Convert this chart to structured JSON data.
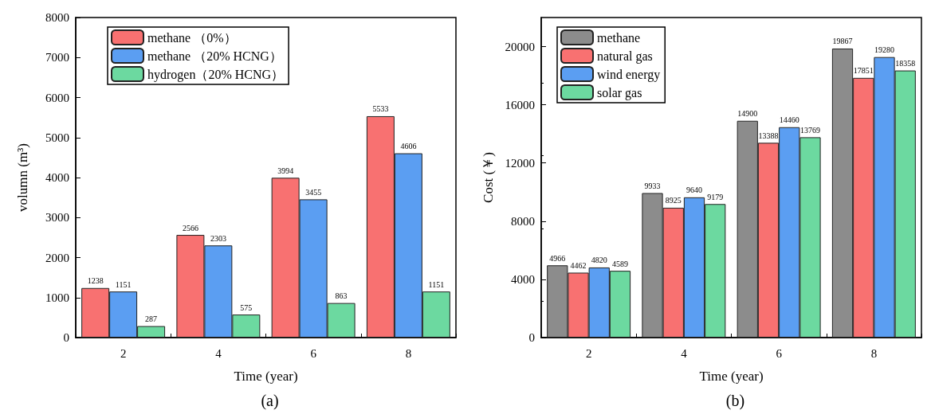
{
  "chart_data": [
    {
      "type": "bar",
      "subtitle": "(a)",
      "xlabel": "Time (year)",
      "ylabel": "volumn (m³)",
      "categories": [
        "2",
        "4",
        "6",
        "8"
      ],
      "series": [
        {
          "name": "methane （0%）",
          "color": "#f87171",
          "values": [
            1238,
            2566,
            3994,
            5533
          ]
        },
        {
          "name": "methane （20% HCNG）",
          "color": "#5b9ef2",
          "values": [
            1151,
            2303,
            3455,
            4606
          ]
        },
        {
          "name": "hydrogen（20% HCNG）",
          "color": "#6cd9a0",
          "values": [
            287,
            575,
            863,
            1151
          ]
        }
      ],
      "ylim": [
        0,
        8000
      ],
      "yticks": [
        0,
        1000,
        2000,
        3000,
        4000,
        5000,
        6000,
        7000,
        8000
      ],
      "legend": "top left",
      "data_labels": true
    },
    {
      "type": "bar",
      "subtitle": "(b)",
      "xlabel": "Time (year)",
      "ylabel": "Cost (￥)",
      "categories": [
        "2",
        "4",
        "6",
        "8"
      ],
      "series": [
        {
          "name": "methane",
          "color": "#8c8c8c",
          "values": [
            4966,
            9933,
            14900,
            19867
          ]
        },
        {
          "name": "natural gas",
          "color": "#f87171",
          "values": [
            4462,
            8925,
            13388,
            17851
          ]
        },
        {
          "name": "wind energy",
          "color": "#5b9ef2",
          "values": [
            4820,
            9640,
            14460,
            19280
          ]
        },
        {
          "name": "solar gas",
          "color": "#6cd9a0",
          "values": [
            4589,
            9179,
            13769,
            18358
          ]
        }
      ],
      "ylim": [
        0,
        22000
      ],
      "yticks": [
        0,
        4000,
        8000,
        12000,
        16000,
        20000
      ],
      "legend": "top left",
      "data_labels": true
    }
  ]
}
